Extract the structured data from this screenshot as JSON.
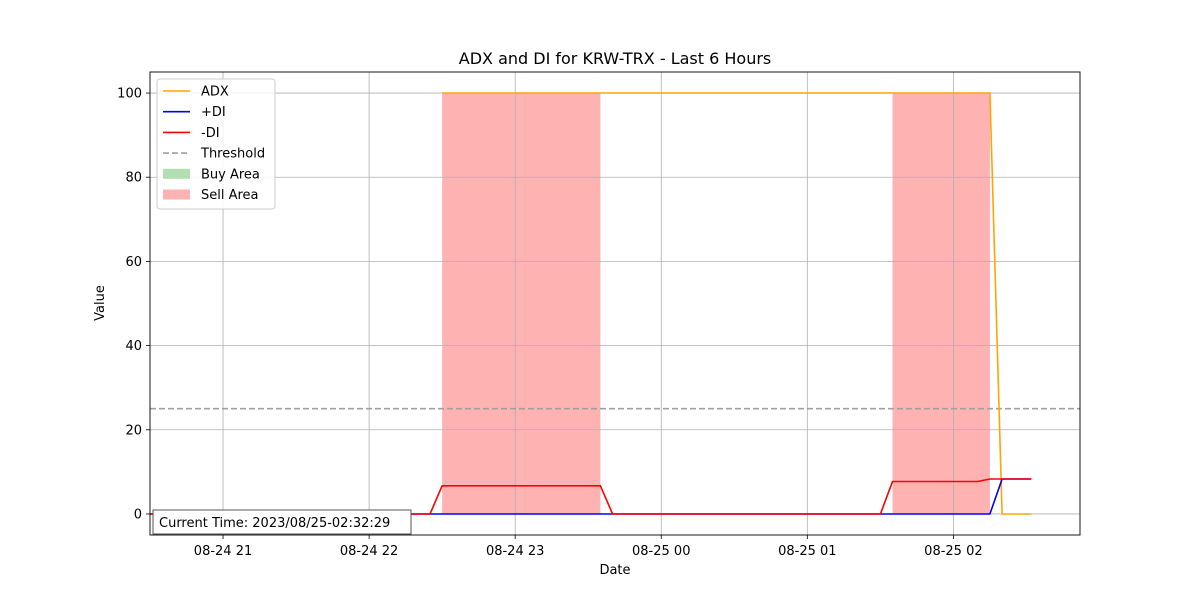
{
  "chart_data": {
    "type": "line",
    "title": "ADX and DI for KRW-TRX - Last 6 Hours",
    "xlabel": "Date",
    "ylabel": "Value",
    "ylim": [
      -5,
      105
    ],
    "xlim": [
      "2023-08-24 20:30",
      "2023-08-25 02:52"
    ],
    "yticks": [
      0,
      20,
      40,
      60,
      80,
      100
    ],
    "xticks": [
      {
        "t": "2023-08-24 21:00",
        "label": "08-24 21"
      },
      {
        "t": "2023-08-24 22:00",
        "label": "08-24 22"
      },
      {
        "t": "2023-08-24 23:00",
        "label": "08-24 23"
      },
      {
        "t": "2023-08-25 00:00",
        "label": "08-25 00"
      },
      {
        "t": "2023-08-25 01:00",
        "label": "08-25 01"
      },
      {
        "t": "2023-08-25 02:00",
        "label": "08-25 02"
      }
    ],
    "grid": true,
    "legend_position": "top-left",
    "series": [
      {
        "name": "ADX",
        "color": "#ffa500",
        "points": [
          [
            "2023-08-24 22:30",
            100
          ],
          [
            "2023-08-24 23:35",
            100
          ],
          [
            "2023-08-25 01:35",
            100
          ],
          [
            "2023-08-25 02:15",
            100
          ],
          [
            "2023-08-25 02:20",
            0
          ],
          [
            "2023-08-25 02:32",
            0
          ]
        ]
      },
      {
        "name": "+DI",
        "color": "#0000ff",
        "points": [
          [
            "2023-08-24 20:30",
            0
          ],
          [
            "2023-08-25 02:15",
            0
          ],
          [
            "2023-08-25 02:20",
            8.3
          ],
          [
            "2023-08-25 02:32",
            8.3
          ]
        ]
      },
      {
        "name": "-DI",
        "color": "#ff0000",
        "points": [
          [
            "2023-08-24 20:30",
            0
          ],
          [
            "2023-08-24 22:25",
            0
          ],
          [
            "2023-08-24 22:30",
            6.7
          ],
          [
            "2023-08-24 23:35",
            6.7
          ],
          [
            "2023-08-24 23:40",
            0
          ],
          [
            "2023-08-25 01:30",
            0
          ],
          [
            "2023-08-25 01:35",
            7.7
          ],
          [
            "2023-08-25 02:10",
            7.7
          ],
          [
            "2023-08-25 02:15",
            8.3
          ],
          [
            "2023-08-25 02:32",
            8.3
          ]
        ]
      }
    ],
    "threshold": {
      "name": "Threshold",
      "value": 25,
      "color": "#a0a0a0"
    },
    "buy_area": {
      "name": "Buy Area",
      "color": "#b2dfb2",
      "ranges": []
    },
    "sell_area": {
      "name": "Sell Area",
      "color": "#ffb2b2",
      "ranges": [
        [
          "2023-08-24 22:30",
          "2023-08-24 23:35"
        ],
        [
          "2023-08-25 01:35",
          "2023-08-25 02:15"
        ]
      ]
    },
    "current_time_text": "Current Time: 2023/08/25-02:32:29"
  }
}
